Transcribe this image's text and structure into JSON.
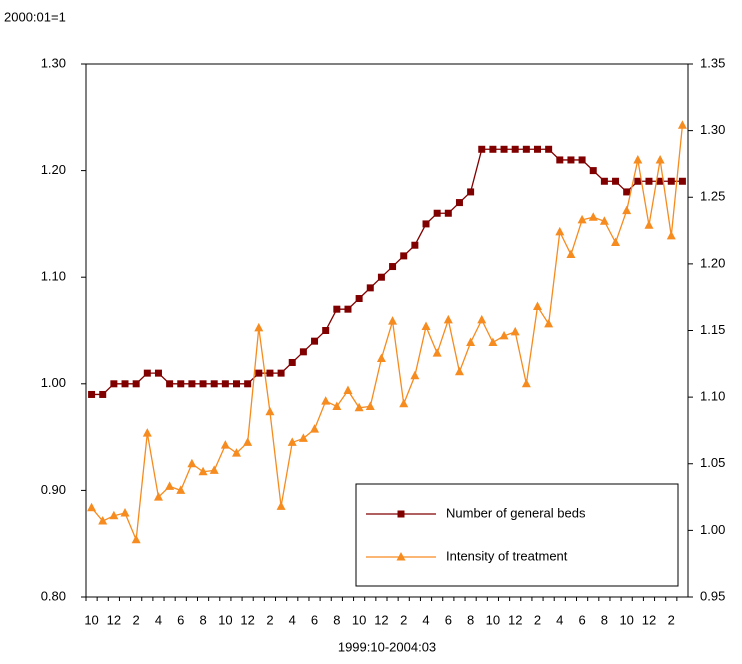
{
  "chart_data": {
    "type": "line",
    "y_note": "2000:01=1",
    "x_label": "1999:10-2004:03",
    "categories": [
      "10",
      null,
      "12",
      null,
      "2",
      null,
      "4",
      null,
      "6",
      null,
      "8",
      null,
      "10",
      null,
      "12",
      null,
      "2",
      null,
      "4",
      null,
      "6",
      null,
      "8",
      null,
      "10",
      null,
      "12",
      null,
      "2",
      null,
      "4",
      null,
      "6",
      null,
      "8",
      null,
      "10",
      null,
      "12",
      null,
      "2",
      null,
      "4",
      null,
      "6",
      null,
      "8",
      null,
      "10",
      null,
      "12",
      null,
      "2",
      null
    ],
    "series": [
      {
        "name": "Number of general beds",
        "color": "#800000",
        "marker": "square",
        "axis": "y",
        "values": [
          0.99,
          0.99,
          1.0,
          1.0,
          1.0,
          1.01,
          1.01,
          1.0,
          1.0,
          1.0,
          1.0,
          1.0,
          1.0,
          1.0,
          1.0,
          1.01,
          1.01,
          1.01,
          1.02,
          1.03,
          1.04,
          1.05,
          1.07,
          1.07,
          1.08,
          1.09,
          1.1,
          1.11,
          1.12,
          1.13,
          1.15,
          1.16,
          1.16,
          1.17,
          1.18,
          1.22,
          1.22,
          1.22,
          1.22,
          1.22,
          1.22,
          1.22,
          1.21,
          1.21,
          1.21,
          1.2,
          1.19,
          1.19,
          1.18,
          1.19,
          1.19,
          1.19,
          1.19,
          1.19
        ]
      },
      {
        "name": "Intensity of treatment",
        "color": "#f68b1f",
        "marker": "triangle",
        "axis": "y2",
        "values": [
          1.017,
          1.007,
          1.011,
          1.013,
          0.993,
          1.073,
          1.025,
          1.033,
          1.03,
          1.05,
          1.044,
          1.045,
          1.064,
          1.058,
          1.066,
          1.152,
          1.089,
          1.018,
          1.066,
          1.069,
          1.076,
          1.097,
          1.093,
          1.105,
          1.092,
          1.093,
          1.129,
          1.157,
          1.095,
          1.116,
          1.153,
          1.133,
          1.158,
          1.119,
          1.141,
          1.158,
          1.141,
          1.146,
          1.149,
          1.11,
          1.168,
          1.155,
          1.224,
          1.207,
          1.233,
          1.235,
          1.232,
          1.216,
          1.24,
          1.278,
          1.229,
          1.278,
          1.221,
          1.304
        ]
      }
    ],
    "ylim": [
      0.8,
      1.3
    ],
    "yticks": [
      {
        "value": 0.8,
        "label": "0.80"
      },
      {
        "value": 0.9,
        "label": "0.90"
      },
      {
        "value": 1.0,
        "label": "1.00"
      },
      {
        "value": 1.1,
        "label": "1.10"
      },
      {
        "value": 1.2,
        "label": "1.20"
      },
      {
        "value": 1.3,
        "label": "1.30"
      }
    ],
    "y2lim": [
      0.95,
      1.35
    ],
    "y2ticks": [
      0.95,
      {
        "value": 1.0,
        "label": "1.00"
      },
      1.05,
      {
        "value": 1.1,
        "label": "1.10"
      },
      1.15,
      {
        "value": 1.2,
        "label": "1.20"
      },
      1.25,
      {
        "value": 1.3,
        "label": "1.30"
      },
      1.35
    ],
    "grid": false,
    "legend": "lower-right"
  }
}
